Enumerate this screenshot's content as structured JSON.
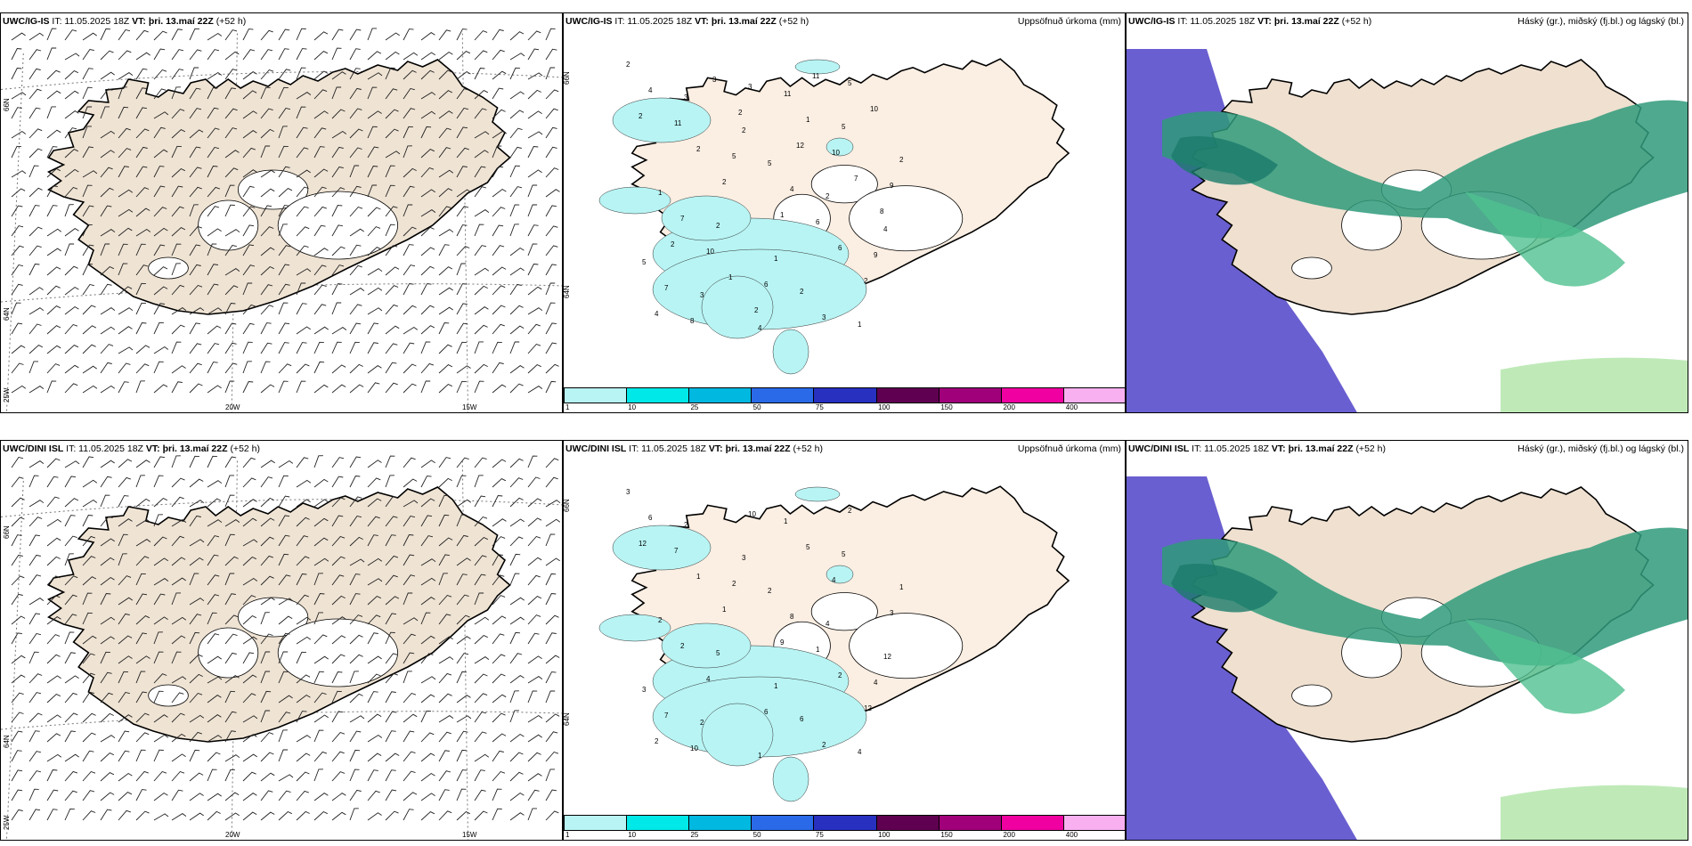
{
  "rows": [
    {
      "model": "UWC/IG-IS",
      "it": "IT: 11.05.2025 18Z",
      "vt_label": "VT:",
      "vt": "þri. 13.maí 22Z",
      "lead": "(+52 h)",
      "precip_numbers": [
        "2",
        "3",
        "2",
        "5",
        "2",
        "4",
        "5",
        "3",
        "4",
        "11",
        "5",
        "2",
        "1",
        "2",
        "1",
        "2",
        "1",
        "4",
        "11",
        "5",
        "4",
        "6",
        "9",
        "7",
        "8",
        "3",
        "1",
        "10",
        "9",
        "7",
        "10",
        "6",
        "3",
        "5",
        "2",
        "2",
        "2",
        "1",
        "6",
        "2",
        "4",
        "3",
        "2",
        "12",
        "7",
        "8",
        "2",
        "1",
        "2",
        "11",
        "10"
      ]
    },
    {
      "model": "UWC/DINI ISL",
      "it": "IT: 11.05.2025 18Z",
      "vt_label": "VT:",
      "vt": "þri. 13.maí 22Z",
      "lead": "(+52 h)",
      "precip_numbers": [
        "3",
        "2",
        "3",
        "2",
        "4",
        "12",
        "3",
        "2",
        "1",
        "1",
        "5",
        "1",
        "2",
        "5",
        "1",
        "6",
        "4",
        "6",
        "7",
        "2",
        "8",
        "1",
        "4",
        "7",
        "10",
        "10",
        "5",
        "4",
        "3",
        "2",
        "4",
        "6",
        "2",
        "2",
        "12",
        "1",
        "1",
        "9",
        "2",
        "12",
        "2"
      ]
    }
  ],
  "wind_labels": {
    "lat_top": "66N",
    "lat_bottom": "64N",
    "lon_left": "25W",
    "lon_mid": "20W",
    "lon_right": "15W"
  },
  "precip_labels": {
    "lat_top": "66N",
    "lat_bottom": "64N"
  },
  "precip_title": "Uppsöfnuð úrkoma (mm)",
  "cloud_title": "Háský (gr.), miðský (fj.bl.) og lágský (bl.)",
  "precip_colorbar": {
    "colors": [
      "#b8f4f4",
      "#00e8e8",
      "#00b8e0",
      "#2a6ae8",
      "#2830c0",
      "#600050",
      "#a0007a",
      "#f000a0",
      "#f8b0f0"
    ],
    "ticks": [
      "1",
      "10",
      "25",
      "50",
      "75",
      "100",
      "150",
      "200",
      "400"
    ]
  },
  "land_colors": {
    "wind": "#efe3d3",
    "precip": "#fbeee2",
    "cloud": "#efe0d0",
    "ice": "#ffffff"
  },
  "cloud_colors": {
    "low": "#6a5fd0",
    "mid": "#2f9a7a",
    "high": "#50c090",
    "thin": "#b8e8b0"
  }
}
